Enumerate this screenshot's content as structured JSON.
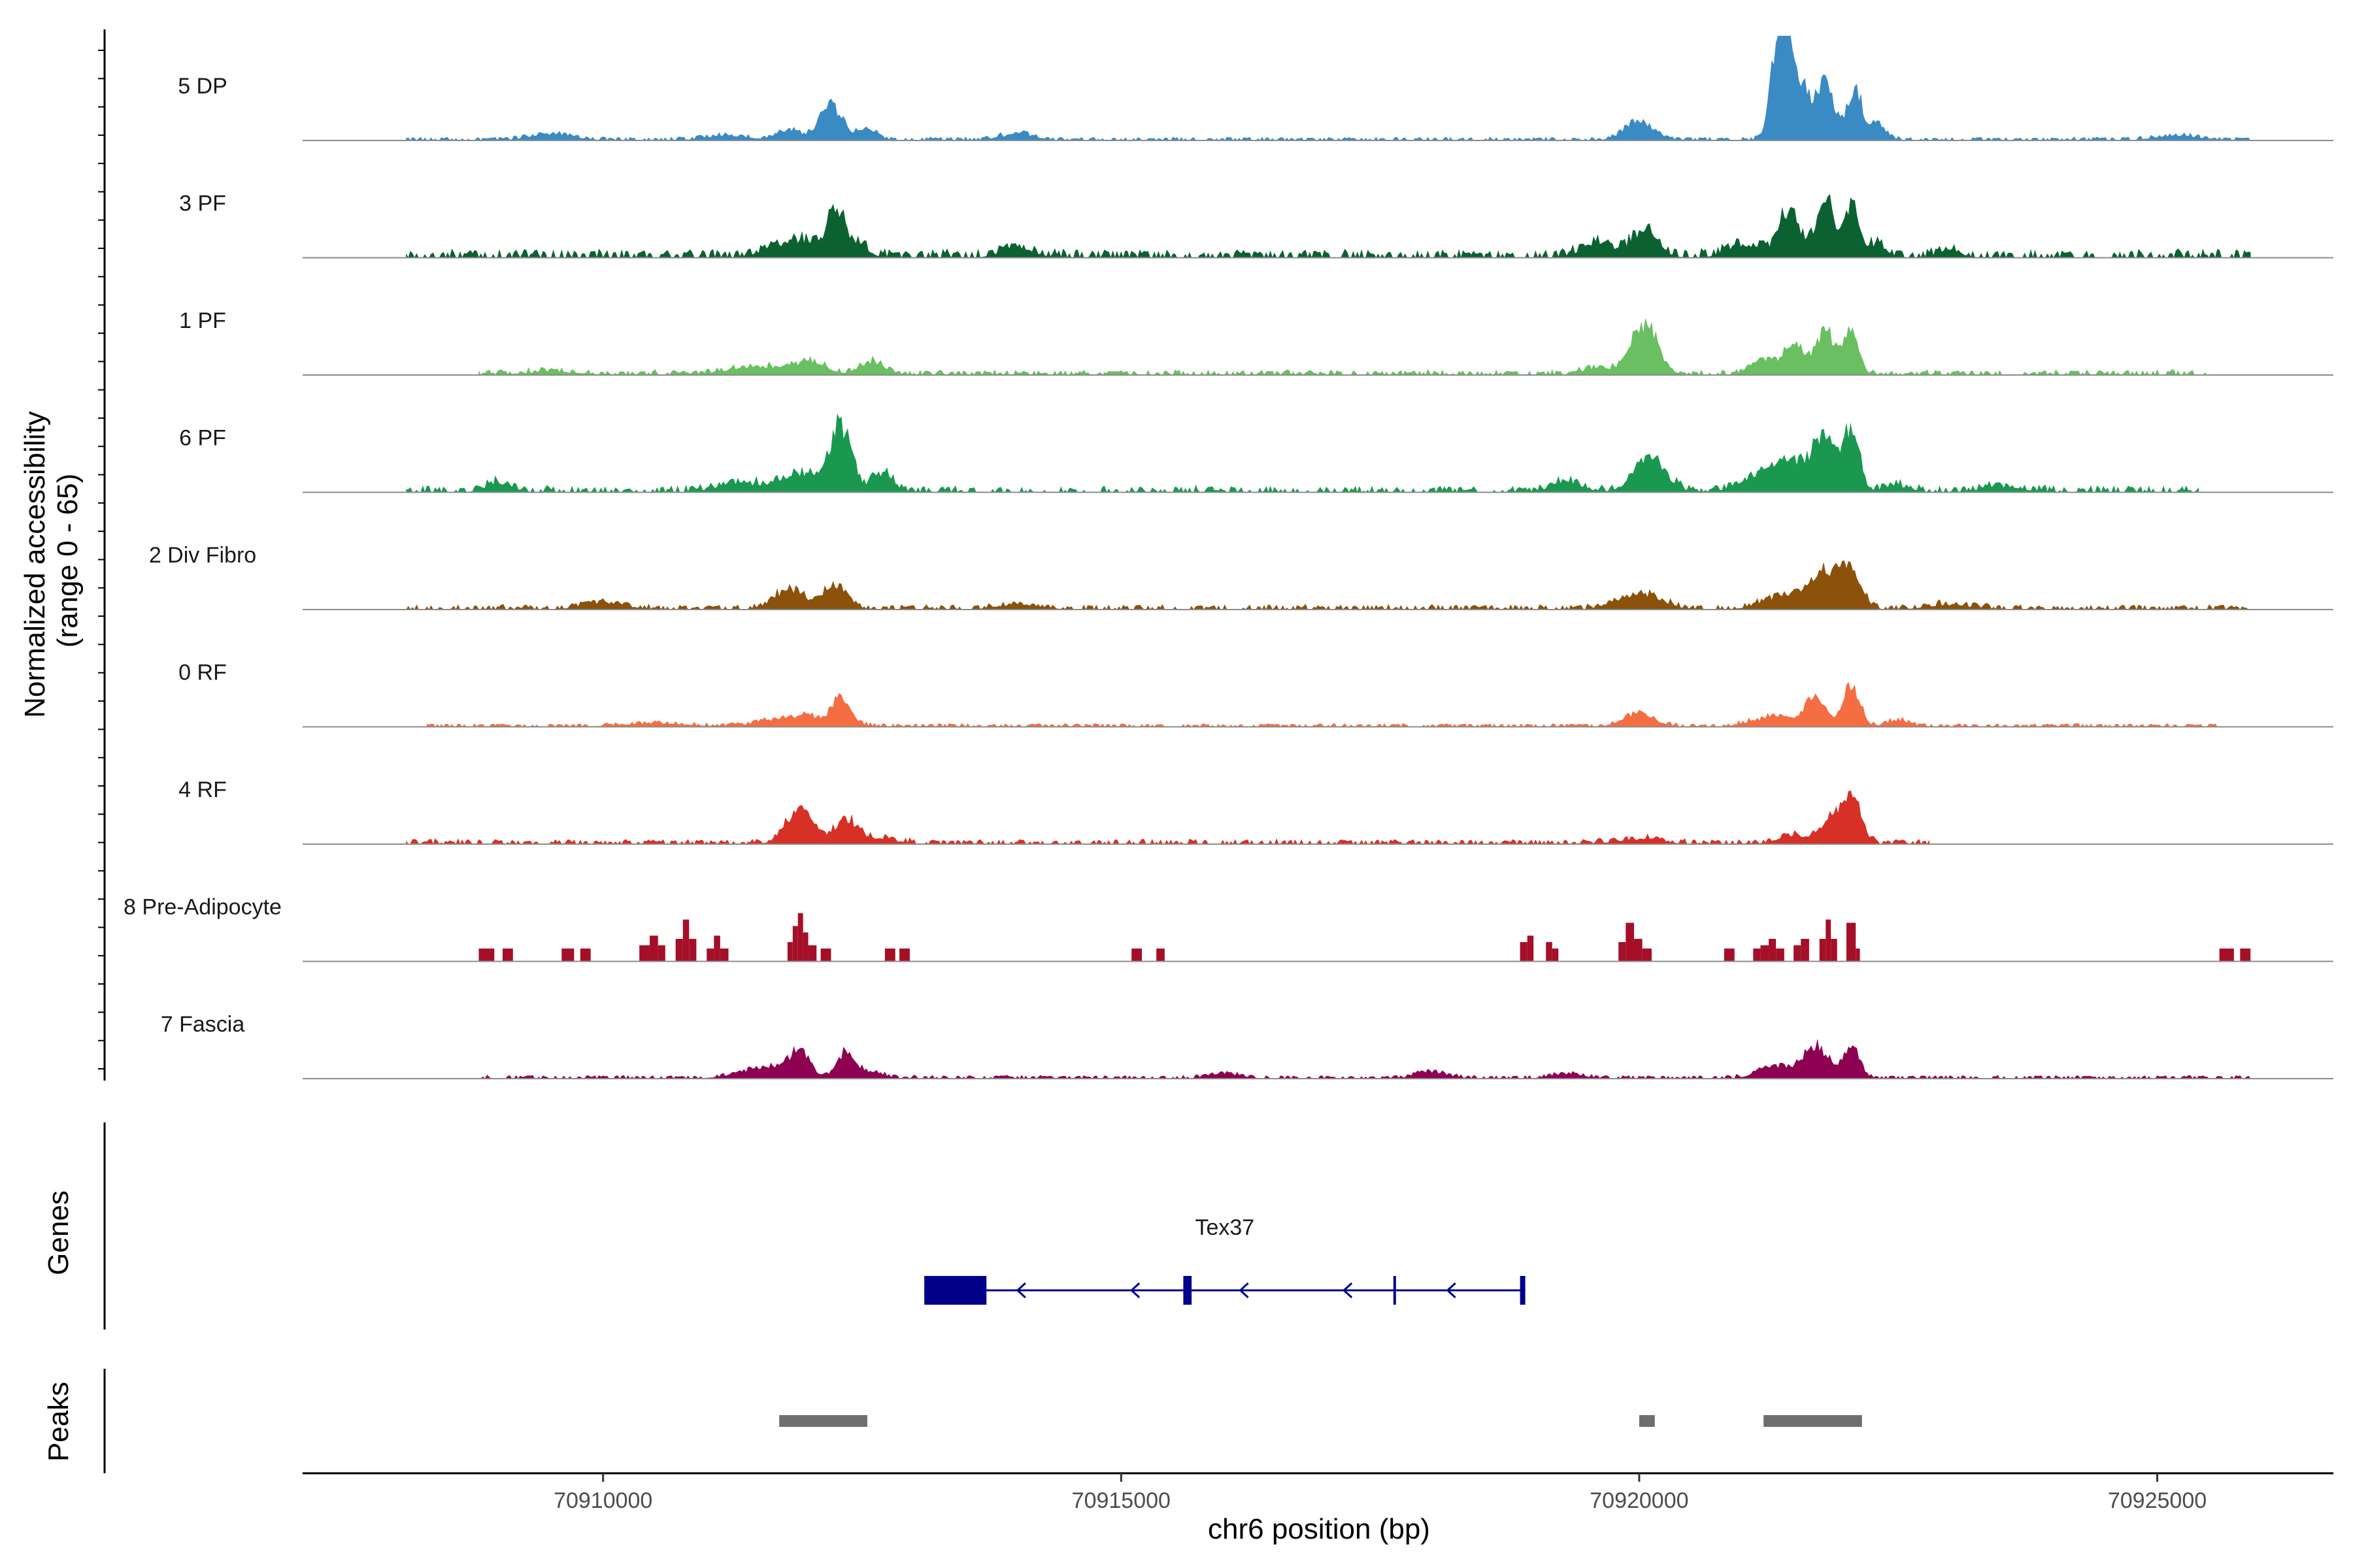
{
  "chart_data": {
    "type": "area",
    "title": "",
    "xlabel": "chr6 position (bp)",
    "ylabel": "Normalized accessibility\n(range 0 - 65)",
    "y_range": [
      0,
      65
    ],
    "xlim": [
      70907100,
      70926700
    ],
    "x_ticks": [
      70910000,
      70915000,
      70920000,
      70925000
    ],
    "x_tick_labels": [
      "70910000",
      "70915000",
      "70920000",
      "70925000"
    ],
    "tracks": [
      {
        "name": "5 DP",
        "color": "#3a8ac4",
        "data_start": 70908100,
        "data_end": 70925900,
        "background": [
          1,
          2
        ],
        "step_bins": false,
        "peaks": [
          [
            70911800,
            6,
            120
          ],
          [
            70912200,
            22,
            110
          ],
          [
            70912550,
            7,
            90
          ],
          [
            70909500,
            4,
            200
          ],
          [
            70911200,
            3,
            200
          ],
          [
            70914000,
            4,
            160
          ],
          [
            70920000,
            12,
            140
          ],
          [
            70921350,
            62,
            70
          ],
          [
            70921500,
            42,
            120
          ],
          [
            70921800,
            34,
            90
          ],
          [
            70922080,
            32,
            70
          ],
          [
            70922300,
            10,
            80
          ],
          [
            70925200,
            3,
            200
          ]
        ]
      },
      {
        "name": "3 PF",
        "color": "#0b6230",
        "data_start": 70908100,
        "data_end": 70925900,
        "background": [
          2,
          5
        ],
        "step_bins": false,
        "peaks": [
          [
            70911900,
            10,
            250
          ],
          [
            70912250,
            24,
            80
          ],
          [
            70912450,
            8,
            100
          ],
          [
            70914000,
            6,
            150
          ],
          [
            70919600,
            9,
            150
          ],
          [
            70920050,
            16,
            130
          ],
          [
            70921000,
            8,
            150
          ],
          [
            70921450,
            28,
            110
          ],
          [
            70921800,
            36,
            80
          ],
          [
            70922050,
            32,
            70
          ],
          [
            70922300,
            8,
            80
          ],
          [
            70923000,
            5,
            100
          ]
        ]
      },
      {
        "name": "1 PF",
        "color": "#6abf62",
        "data_start": 70908800,
        "data_end": 70925500,
        "background": [
          1,
          3
        ],
        "step_bins": false,
        "peaks": [
          [
            70909500,
            2,
            250
          ],
          [
            70911500,
            5,
            300
          ],
          [
            70912000,
            7,
            150
          ],
          [
            70912600,
            8,
            120
          ],
          [
            70920050,
            30,
            130
          ],
          [
            70921200,
            10,
            120
          ],
          [
            70921500,
            18,
            100
          ],
          [
            70921800,
            28,
            90
          ],
          [
            70922050,
            28,
            70
          ],
          [
            70919600,
            4,
            150
          ]
        ]
      },
      {
        "name": "6 PF",
        "color": "#1a9850",
        "data_start": 70908100,
        "data_end": 70925400,
        "background": [
          1,
          4
        ],
        "step_bins": false,
        "peaks": [
          [
            70909000,
            6,
            120
          ],
          [
            70911300,
            5,
            200
          ],
          [
            70911900,
            12,
            200
          ],
          [
            70912300,
            40,
            100
          ],
          [
            70912700,
            11,
            100
          ],
          [
            70919300,
            6,
            150
          ],
          [
            70920100,
            22,
            150
          ],
          [
            70921200,
            11,
            200
          ],
          [
            70921500,
            16,
            150
          ],
          [
            70921800,
            34,
            110
          ],
          [
            70922050,
            38,
            70
          ],
          [
            70922500,
            4,
            120
          ],
          [
            70923500,
            3,
            200
          ]
        ]
      },
      {
        "name": "2 Div Fibro",
        "color": "#8c510a",
        "data_start": 70908100,
        "data_end": 70925900,
        "background": [
          1,
          3
        ],
        "step_bins": false,
        "peaks": [
          [
            70911800,
            12,
            150
          ],
          [
            70912250,
            16,
            110
          ],
          [
            70910000,
            4,
            200
          ],
          [
            70914000,
            3,
            200
          ],
          [
            70920000,
            10,
            200
          ],
          [
            70921400,
            8,
            200
          ],
          [
            70921800,
            22,
            150
          ],
          [
            70922050,
            20,
            100
          ],
          [
            70923000,
            3,
            200
          ]
        ]
      },
      {
        "name": "0 RF",
        "color": "#f46d43",
        "data_start": 70908300,
        "data_end": 70925600,
        "background": [
          1,
          2
        ],
        "step_bins": false,
        "peaks": [
          [
            70911900,
            7,
            300
          ],
          [
            70912300,
            15,
            80
          ],
          [
            70910500,
            2,
            300
          ],
          [
            70920000,
            8,
            150
          ],
          [
            70921300,
            6,
            200
          ],
          [
            70921700,
            18,
            100
          ],
          [
            70922050,
            26,
            80
          ],
          [
            70922500,
            4,
            100
          ]
        ]
      },
      {
        "name": "4 RF",
        "color": "#d73027",
        "data_start": 70908100,
        "data_end": 70922800,
        "background": [
          1,
          3
        ],
        "step_bins": false,
        "peaks": [
          [
            70911900,
            22,
            130
          ],
          [
            70912350,
            14,
            120
          ],
          [
            70912700,
            3,
            150
          ],
          [
            70920000,
            3,
            200
          ],
          [
            70921500,
            5,
            150
          ],
          [
            70921850,
            16,
            100
          ],
          [
            70922050,
            28,
            90
          ]
        ]
      },
      {
        "name": "8 Pre-Adipocyte",
        "color": "#a50f27",
        "data_start": 70908200,
        "data_end": 70926000,
        "background": [
          0,
          0
        ],
        "step_bins": true,
        "blocks": [
          [
            70908800,
            70908950,
            8
          ],
          [
            70909030,
            70909130,
            8
          ],
          [
            70909600,
            70909720,
            8
          ],
          [
            70909780,
            70909880,
            8
          ],
          [
            70910350,
            70910450,
            10
          ],
          [
            70910450,
            70910530,
            16
          ],
          [
            70910530,
            70910600,
            10
          ],
          [
            70910700,
            70910770,
            14
          ],
          [
            70910770,
            70910830,
            26
          ],
          [
            70910830,
            70910900,
            14
          ],
          [
            70911000,
            70911070,
            8
          ],
          [
            70911070,
            70911130,
            16
          ],
          [
            70911130,
            70911210,
            8
          ],
          [
            70911780,
            70911830,
            12
          ],
          [
            70911830,
            70911880,
            22
          ],
          [
            70911880,
            70911930,
            30
          ],
          [
            70911930,
            70911980,
            18
          ],
          [
            70911980,
            70912060,
            10
          ],
          [
            70912100,
            70912200,
            8
          ],
          [
            70912720,
            70912820,
            8
          ],
          [
            70912860,
            70912960,
            8
          ],
          [
            70915100,
            70915200,
            8
          ],
          [
            70915340,
            70915420,
            8
          ],
          [
            70918850,
            70918920,
            12
          ],
          [
            70918920,
            70918980,
            16
          ],
          [
            70919100,
            70919160,
            12
          ],
          [
            70919160,
            70919220,
            8
          ],
          [
            70919800,
            70919870,
            12
          ],
          [
            70919870,
            70919950,
            24
          ],
          [
            70919950,
            70920030,
            14
          ],
          [
            70920030,
            70920120,
            8
          ],
          [
            70920820,
            70920920,
            8
          ],
          [
            70921100,
            70921170,
            8
          ],
          [
            70921170,
            70921250,
            10
          ],
          [
            70921250,
            70921320,
            14
          ],
          [
            70921320,
            70921400,
            8
          ],
          [
            70921490,
            70921560,
            10
          ],
          [
            70921560,
            70921640,
            14
          ],
          [
            70921740,
            70921800,
            14
          ],
          [
            70921800,
            70921850,
            26
          ],
          [
            70921850,
            70921910,
            14
          ],
          [
            70922000,
            70922090,
            24
          ],
          [
            70922090,
            70922130,
            8
          ],
          [
            70925600,
            70925740,
            8
          ],
          [
            70925800,
            70925900,
            8
          ]
        ]
      },
      {
        "name": "7 Fascia",
        "color": "#8e0152",
        "data_start": 70908800,
        "data_end": 70925900,
        "background": [
          1,
          2
        ],
        "step_bins": false,
        "peaks": [
          [
            70911600,
            7,
            250
          ],
          [
            70911900,
            16,
            90
          ],
          [
            70912350,
            16,
            90
          ],
          [
            70912600,
            4,
            100
          ],
          [
            70918000,
            4,
            150
          ],
          [
            70921300,
            8,
            150
          ],
          [
            70921700,
            20,
            120
          ],
          [
            70922050,
            20,
            80
          ],
          [
            70916000,
            3,
            150
          ],
          [
            70919300,
            3,
            150
          ]
        ]
      }
    ],
    "genes": [
      {
        "name": "Tex37",
        "strand": "-",
        "start": 70913100,
        "end": 70918900,
        "exons": [
          [
            70913100,
            70913700,
            "thick"
          ],
          [
            70915600,
            70915680,
            "thin"
          ],
          [
            70917640,
            70917680,
            "line"
          ],
          [
            70918850,
            70918900,
            "thin"
          ]
        ],
        "arrows": [
          70914000,
          70915100,
          70916150,
          70917150,
          70918150
        ]
      }
    ],
    "peaks": [
      [
        70911700,
        70912550
      ],
      [
        70920000,
        70920150
      ],
      [
        70921200,
        70922150
      ]
    ],
    "panel_labels": {
      "genes": "Genes",
      "peaks": "Peaks"
    },
    "colors": {
      "gene": "#00008b",
      "peak": "#6e6e6e",
      "baseline": "#8c8c8c"
    }
  }
}
